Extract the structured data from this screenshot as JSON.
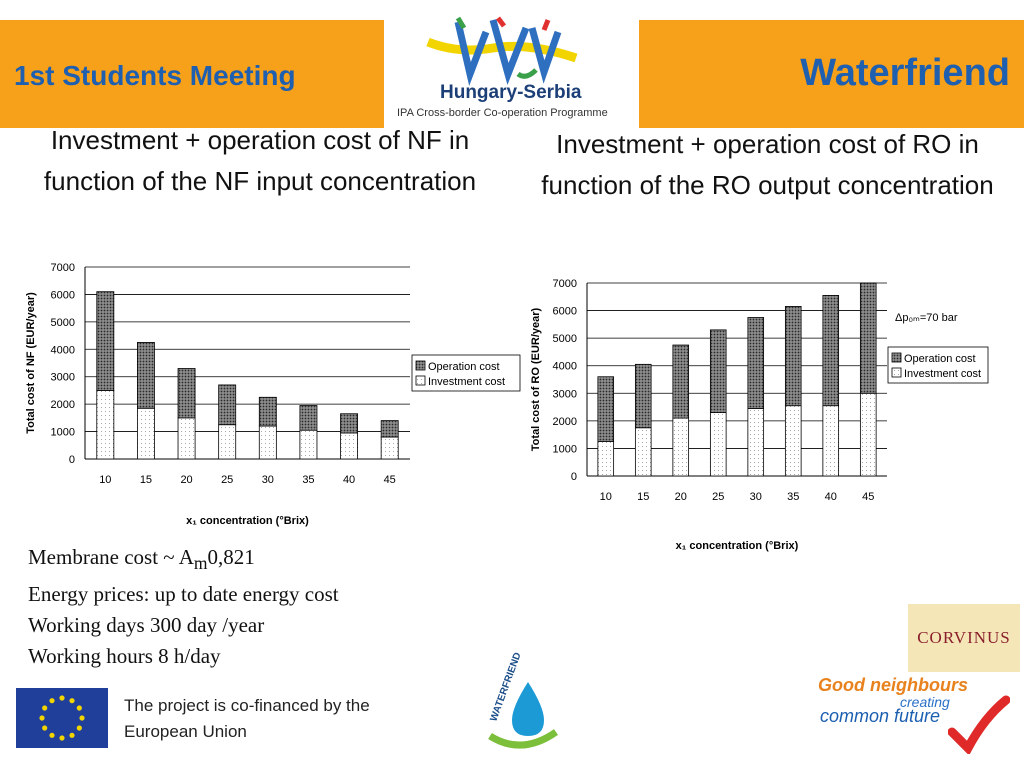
{
  "header": {
    "meeting_title": "1st Students Meeting",
    "brand_title": "Waterfriend",
    "programme_name": "Hungary-Serbia",
    "programme_subtitle": "IPA Cross-border Co-operation Programme"
  },
  "charts": {
    "nf_title": "Investment + operation cost of NF in function of the NF input concentration",
    "ro_title": "Investment + operation cost of RO in function of the RO output concentration"
  },
  "chart_data": [
    {
      "type": "bar",
      "stacked": true,
      "title": "Investment + operation cost of NF in function of the NF input concentration",
      "categories": [
        "10",
        "15",
        "20",
        "25",
        "30",
        "35",
        "40",
        "45"
      ],
      "series": [
        {
          "name": "Investment cost",
          "values": [
            2500,
            1850,
            1500,
            1250,
            1200,
            1050,
            950,
            800
          ]
        },
        {
          "name": "Operation cost",
          "values": [
            3600,
            2400,
            1800,
            1450,
            1050,
            900,
            700,
            600
          ]
        }
      ],
      "xlabel": "x₁ concentration (°Brix)",
      "ylabel": "Total cost of NF (EUR/year)",
      "ylim": [
        0,
        7000
      ],
      "yticks": [
        "0",
        "1000",
        "2000",
        "3000",
        "4000",
        "5000",
        "6000",
        "7000"
      ],
      "grid": true,
      "legend": "right",
      "annotation": ""
    },
    {
      "type": "bar",
      "stacked": true,
      "title": "Investment + operation cost of RO in function of the RO output concentration",
      "categories": [
        "10",
        "15",
        "20",
        "25",
        "30",
        "35",
        "40",
        "45"
      ],
      "series": [
        {
          "name": "Investment cost",
          "values": [
            1250,
            1750,
            2100,
            2300,
            2450,
            2550,
            2550,
            3000
          ]
        },
        {
          "name": "Operation cost",
          "values": [
            2350,
            2300,
            2650,
            3000,
            3300,
            3600,
            4000,
            4000
          ]
        }
      ],
      "xlabel": "x₁ concentration (°Brix)",
      "ylabel": "Total cost of RO (EUR/year)",
      "ylim": [
        0,
        7000
      ],
      "yticks": [
        "0",
        "1000",
        "2000",
        "3000",
        "4000",
        "5000",
        "6000",
        "7000"
      ],
      "grid": true,
      "legend": "right",
      "annotation": "Δp₀ₘ=70  bar"
    }
  ],
  "params": {
    "membrane_prefix": "Membrane cost ~ A",
    "membrane_sub": "m",
    "membrane_exp": "0,821",
    "energy": "Energy prices: up to date energy cost",
    "working_days": "Working days 300 day /year",
    "working_hours": "Working hours 8 h/day"
  },
  "footer": {
    "eu_text": "The project is co-financed by the European Union",
    "waterfriend_logo_text": "WATERFRIEND",
    "corvinus": "CORVINUS",
    "good_neighbours_line1": "Good neighbours",
    "good_neighbours_line2": "creating",
    "good_neighbours_line3": "common future"
  },
  "colors": {
    "header_orange": "#f7a11a",
    "header_text_blue": "#1f5fb0"
  },
  "icons": [
    "hungary-serbia-logo-icon",
    "eu-flag-icon",
    "waterfriend-logo-icon",
    "corvinus-logo-icon",
    "checkmark-icon"
  ]
}
